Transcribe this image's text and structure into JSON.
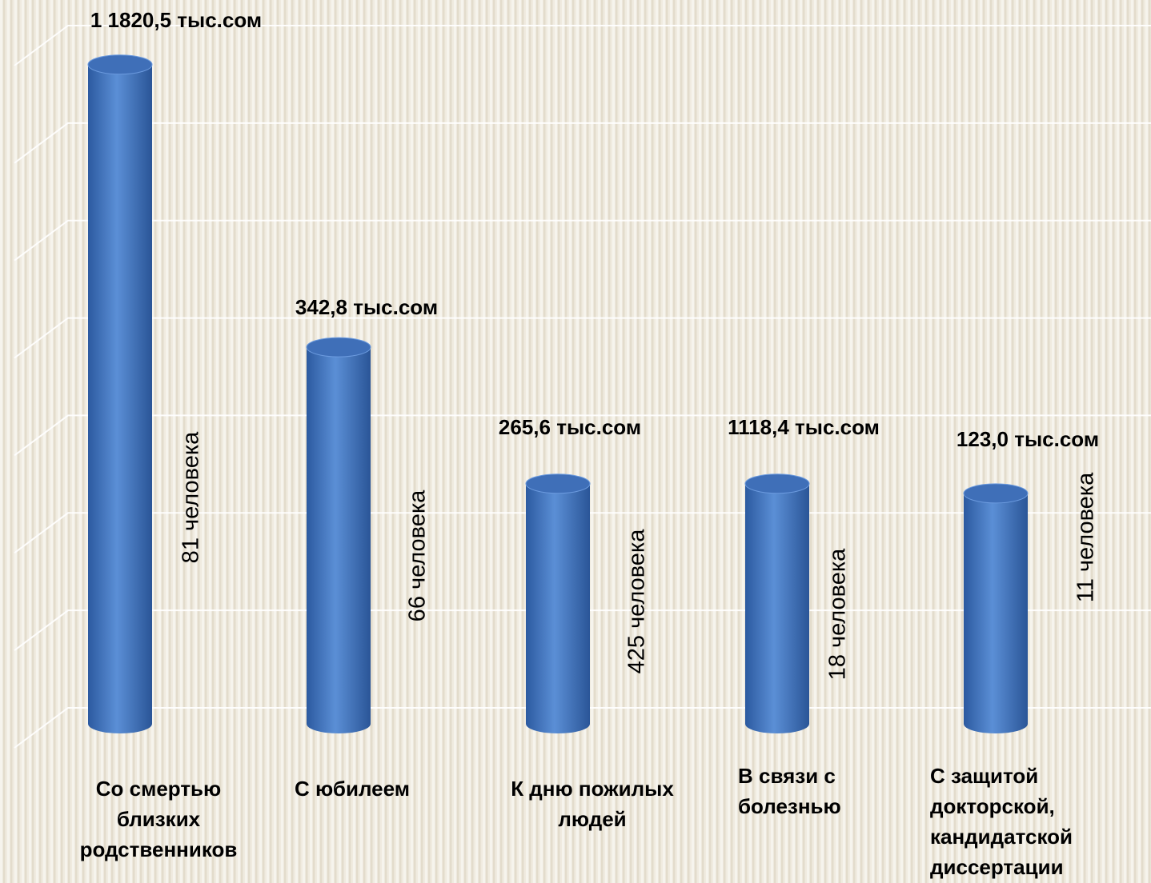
{
  "chart_data": {
    "type": "cylinder-bar",
    "categories": [
      [
        "Со смертью",
        "близких",
        "родственников"
      ],
      [
        "С юбилеем"
      ],
      [
        "К дню пожилых",
        "людей"
      ],
      [
        "В связи с",
        "болезнью"
      ],
      [
        "С защитой",
        "докторской,",
        "кандидатской",
        "диссертации"
      ]
    ],
    "values": [
      6.6,
      3.7,
      2.3,
      2.3,
      2.2
    ],
    "amount_labels": [
      "1 1820,5 тыс.сом",
      "342,8 тыс.сом",
      "265,6 тыс.сом",
      "1118,4 тыс.сом",
      "123,0 тыс.сом"
    ],
    "count_labels": [
      "81 человека",
      "66 человека",
      "425 человека",
      "18 человека",
      "11 человека"
    ],
    "color": "#4a7cc7",
    "ylim": [
      0,
      7
    ],
    "yticks": [
      0,
      1,
      2,
      3,
      4,
      5,
      6,
      7
    ],
    "grid": true
  }
}
